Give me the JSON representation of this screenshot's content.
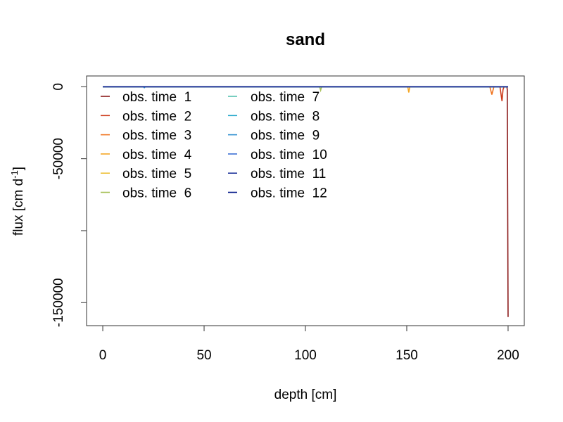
{
  "chart_data": {
    "type": "line",
    "title": "sand",
    "xlabel": "depth [cm]",
    "ylabel": "flux [cm d^-1]",
    "ylabel_parts": {
      "main": "flux [cm d",
      "sup": "-1",
      "tail": "]"
    },
    "xlim": [
      -8,
      208
    ],
    "ylim": [
      -166000,
      7500
    ],
    "x_ticks": [
      0,
      50,
      100,
      150,
      200
    ],
    "y_ticks": [
      0,
      -50000,
      -100000,
      -150000
    ],
    "y_tick_labels": [
      "0",
      "-50000",
      "",
      "-150000"
    ],
    "grid": false,
    "legend_position": "top-left",
    "series": [
      {
        "name": "obs. time  1",
        "color": "#8B1A1A",
        "points": [
          [
            0,
            0
          ],
          [
            199.4,
            0
          ],
          [
            199.6,
            -2000
          ],
          [
            199.8,
            -80000
          ],
          [
            200,
            -160000
          ]
        ]
      },
      {
        "name": "obs. time  2",
        "color": "#CD3A1A",
        "points": [
          [
            0,
            0
          ],
          [
            196,
            0
          ],
          [
            197,
            -10000
          ],
          [
            197.5,
            -2000
          ],
          [
            198,
            0
          ],
          [
            200,
            0
          ]
        ]
      },
      {
        "name": "obs. time  3",
        "color": "#F0731E",
        "points": [
          [
            0,
            0
          ],
          [
            191,
            0
          ],
          [
            192,
            -5500
          ],
          [
            193,
            0
          ],
          [
            200,
            0
          ]
        ]
      },
      {
        "name": "obs. time  4",
        "color": "#F5A623",
        "points": [
          [
            0,
            0
          ],
          [
            150.5,
            0
          ],
          [
            151,
            -4000
          ],
          [
            151.5,
            0
          ],
          [
            200,
            0
          ]
        ]
      },
      {
        "name": "obs. time  5",
        "color": "#EEC13A",
        "points": [
          [
            0,
            0
          ],
          [
            200,
            0
          ]
        ]
      },
      {
        "name": "obs. time  6",
        "color": "#A8C25A",
        "points": [
          [
            0,
            0
          ],
          [
            107,
            0
          ],
          [
            107.5,
            -2500
          ],
          [
            108,
            0
          ],
          [
            200,
            0
          ]
        ]
      },
      {
        "name": "obs. time  7",
        "color": "#56C2B0",
        "points": [
          [
            0,
            0
          ],
          [
            200,
            0
          ]
        ]
      },
      {
        "name": "obs. time  8",
        "color": "#1FA6C9",
        "points": [
          [
            0,
            0
          ],
          [
            200,
            0
          ]
        ]
      },
      {
        "name": "obs. time  9",
        "color": "#2E8FD0",
        "points": [
          [
            0,
            0
          ],
          [
            20,
            0
          ],
          [
            20.5,
            -700
          ],
          [
            21,
            0
          ],
          [
            200,
            0
          ]
        ]
      },
      {
        "name": "obs. time  10",
        "color": "#3A6FD4",
        "points": [
          [
            0,
            0
          ],
          [
            200,
            0
          ]
        ]
      },
      {
        "name": "obs. time  11",
        "color": "#22379C",
        "points": [
          [
            0,
            0
          ],
          [
            200,
            0
          ]
        ]
      },
      {
        "name": "obs. time  12",
        "color": "#0A1F8C",
        "points": [
          [
            0,
            0
          ],
          [
            200,
            0
          ]
        ]
      }
    ]
  }
}
